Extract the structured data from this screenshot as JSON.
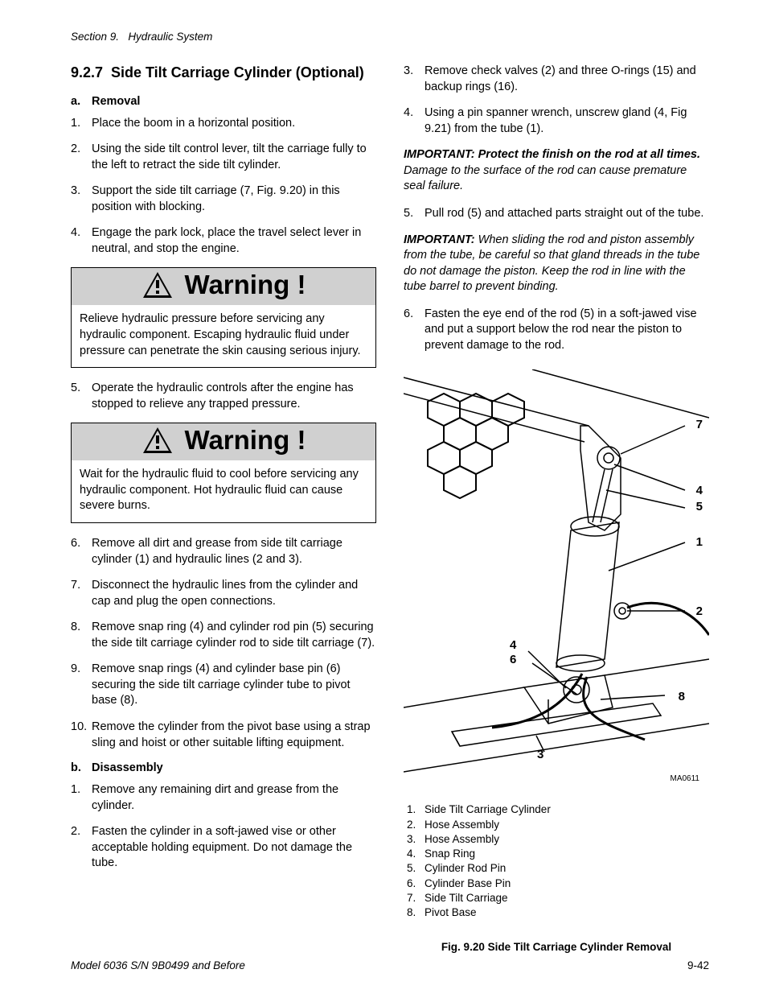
{
  "header": {
    "section": "Section 9.",
    "title": "Hydraulic System"
  },
  "left": {
    "section_number": "9.2.7",
    "section_title": "Side Tilt Carriage Cylinder (Optional)",
    "sub_a_letter": "a.",
    "sub_a": "Removal",
    "list_a1": [
      {
        "n": "1.",
        "t": "Place the boom in a horizontal position."
      },
      {
        "n": "2.",
        "t": "Using the side tilt control lever, tilt the carriage fully to the left to retract the side tilt cylinder."
      },
      {
        "n": "3.",
        "t": "Support the side tilt carriage (7, Fig. 9.20) in this position with blocking."
      },
      {
        "n": "4.",
        "t": "Engage the park lock, place the travel select lever in neutral, and stop the engine."
      }
    ],
    "warn1_title": "Warning !",
    "warn1_body": "Relieve hydraulic pressure before servicing any hydraulic component. Escaping hydraulic fluid under pressure can penetrate the skin causing serious injury.",
    "list_a2": [
      {
        "n": "5.",
        "t": "Operate the hydraulic controls after the engine has stopped to relieve any trapped pressure."
      }
    ],
    "warn2_title": "Warning !",
    "warn2_body": "Wait for the hydraulic fluid to cool before servicing any hydraulic component. Hot hydraulic fluid can cause severe burns.",
    "list_a3": [
      {
        "n": "6.",
        "t": "Remove all dirt and grease from side tilt carriage cylinder (1) and hydraulic lines (2 and 3)."
      },
      {
        "n": "7.",
        "t": "Disconnect the hydraulic lines from the cylinder and cap and plug the open connections."
      },
      {
        "n": "8.",
        "t": "Remove snap ring (4) and cylinder rod pin (5) securing the side tilt carriage cylinder rod to side tilt carriage (7)."
      },
      {
        "n": "9.",
        "t": "Remove snap rings (4) and cylinder base pin (6) securing the side tilt carriage cylinder tube to pivot base (8)."
      },
      {
        "n": "10.",
        "t": "Remove the cylinder from the pivot base using a strap sling and hoist or other suitable lifting equipment."
      }
    ],
    "sub_b_letter": "b.",
    "sub_b": "Disassembly",
    "list_b": [
      {
        "n": "1.",
        "t": "Remove any remaining dirt and grease from the cylinder."
      },
      {
        "n": "2.",
        "t": "Fasten the cylinder in a soft-jawed vise or other acceptable holding equipment.  Do not damage the tube."
      }
    ]
  },
  "right": {
    "list_b_cont": [
      {
        "n": "3.",
        "t": "Remove check valves (2) and three O-rings (15) and backup rings (16)."
      },
      {
        "n": "4.",
        "t": "Using a pin spanner wrench, unscrew gland (4, Fig 9.21) from the tube (1)."
      }
    ],
    "imp1_lead": "IMPORTANT:  Protect the finish on the rod at all times.",
    "imp1_rest": "  Damage to the surface of the rod can cause premature seal failure.",
    "list_b_cont2": [
      {
        "n": "5.",
        "t": "Pull rod (5) and attached parts straight out of the tube."
      }
    ],
    "imp2_lead": "IMPORTANT:",
    "imp2_rest": " When sliding the rod and piston assembly from the tube, be careful so that gland threads in the tube do not damage the piston. Keep the rod in line with the tube barrel to prevent binding.",
    "list_b_cont3": [
      {
        "n": "6.",
        "t": "Fasten the eye end of the rod (5) in a soft-jawed vise and put a support below the rod near the piston to prevent damage to the rod."
      }
    ],
    "callouts": {
      "c7": "7",
      "c4a": "4",
      "c5": "5",
      "c1": "1",
      "c2": "2",
      "c4b": "4",
      "c6": "6",
      "c8": "8",
      "c3": "3"
    },
    "figcode": "MA0611",
    "legend": [
      {
        "n": "1.",
        "t": "Side Tilt Carriage Cylinder"
      },
      {
        "n": "2.",
        "t": "Hose Assembly"
      },
      {
        "n": "3.",
        "t": "Hose Assembly"
      },
      {
        "n": "4.",
        "t": "Snap Ring"
      },
      {
        "n": "5.",
        "t": "Cylinder Rod Pin"
      },
      {
        "n": "6.",
        "t": "Cylinder Base Pin"
      },
      {
        "n": "7.",
        "t": "Side Tilt Carriage"
      },
      {
        "n": "8.",
        "t": "Pivot Base"
      }
    ],
    "fig_caption": "Fig. 9.20 Side Tilt Carriage Cylinder Removal"
  },
  "footer": {
    "model": "Model 6036 S/N 9B0499 and Before",
    "page": "9-42"
  }
}
